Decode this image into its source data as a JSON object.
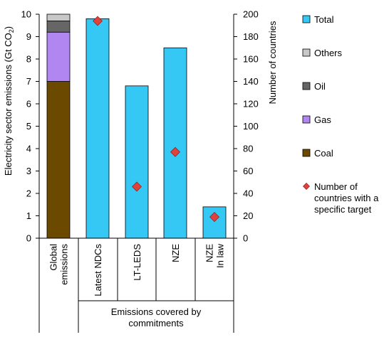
{
  "chart_data": {
    "type": "bar",
    "subtype": "stacked-bar-with-secondary-scatter",
    "categories": [
      "Global emissions",
      "Latest NDCs",
      "LT-LEDS",
      "NZE",
      "NZE In law"
    ],
    "category_labels": [
      [
        "Global",
        "emissions"
      ],
      [
        "Latest NDCs"
      ],
      [
        "LT-LEDS"
      ],
      [
        "NZE"
      ],
      [
        "NZE",
        "In law"
      ]
    ],
    "group_label": [
      "Emissions covered by",
      "commitments"
    ],
    "y_left": {
      "label": "Electricity sector emissions (Gt CO₂)",
      "label_main": "Electricity sector emissions (Gt CO",
      "label_sub": "2",
      "label_end": ")",
      "ylim": [
        0,
        10
      ],
      "ticks": [
        "0",
        "1",
        "2",
        "3",
        "4",
        "5",
        "6",
        "7",
        "8",
        "9",
        "10"
      ]
    },
    "y_right": {
      "label": "Number of countries",
      "ylim": [
        0,
        200
      ],
      "ticks": [
        "0",
        "20",
        "40",
        "60",
        "80",
        "100",
        "120",
        "140",
        "160",
        "180",
        "200"
      ]
    },
    "stacked_global": [
      {
        "name": "Coal",
        "value": 7.0,
        "color": "#6b4a00"
      },
      {
        "name": "Gas",
        "value": 2.2,
        "color": "#b286f0"
      },
      {
        "name": "Oil",
        "value": 0.5,
        "color": "#666666"
      },
      {
        "name": "Others",
        "value": 0.3,
        "color": "#c8c8c8"
      }
    ],
    "total_series": {
      "name": "Total",
      "color": "#36c8f4",
      "values": [
        null,
        9.8,
        6.8,
        8.5,
        1.4
      ]
    },
    "countries_series": {
      "name": "Number of countries with a specific target",
      "name_lines": [
        "Number of",
        "countries with a",
        "specific target"
      ],
      "color": "#e0413b",
      "values": [
        null,
        194,
        46,
        77,
        19
      ]
    },
    "legend": [
      {
        "key": "total",
        "label_lines": [
          "Total"
        ],
        "color": "#36c8f4",
        "shape": "square"
      },
      {
        "key": "others",
        "label_lines": [
          "Others"
        ],
        "color": "#c8c8c8",
        "shape": "square"
      },
      {
        "key": "oil",
        "label_lines": [
          "Oil"
        ],
        "color": "#666666",
        "shape": "square"
      },
      {
        "key": "gas",
        "label_lines": [
          "Gas"
        ],
        "color": "#b286f0",
        "shape": "square"
      },
      {
        "key": "coal",
        "label_lines": [
          "Coal"
        ],
        "color": "#6b4a00",
        "shape": "square"
      },
      {
        "key": "countries",
        "label_lines": [
          "Number of",
          "countries with a",
          "specific target"
        ],
        "color": "#e0413b",
        "shape": "diamond"
      }
    ],
    "legend_position": "right",
    "grid": false
  }
}
